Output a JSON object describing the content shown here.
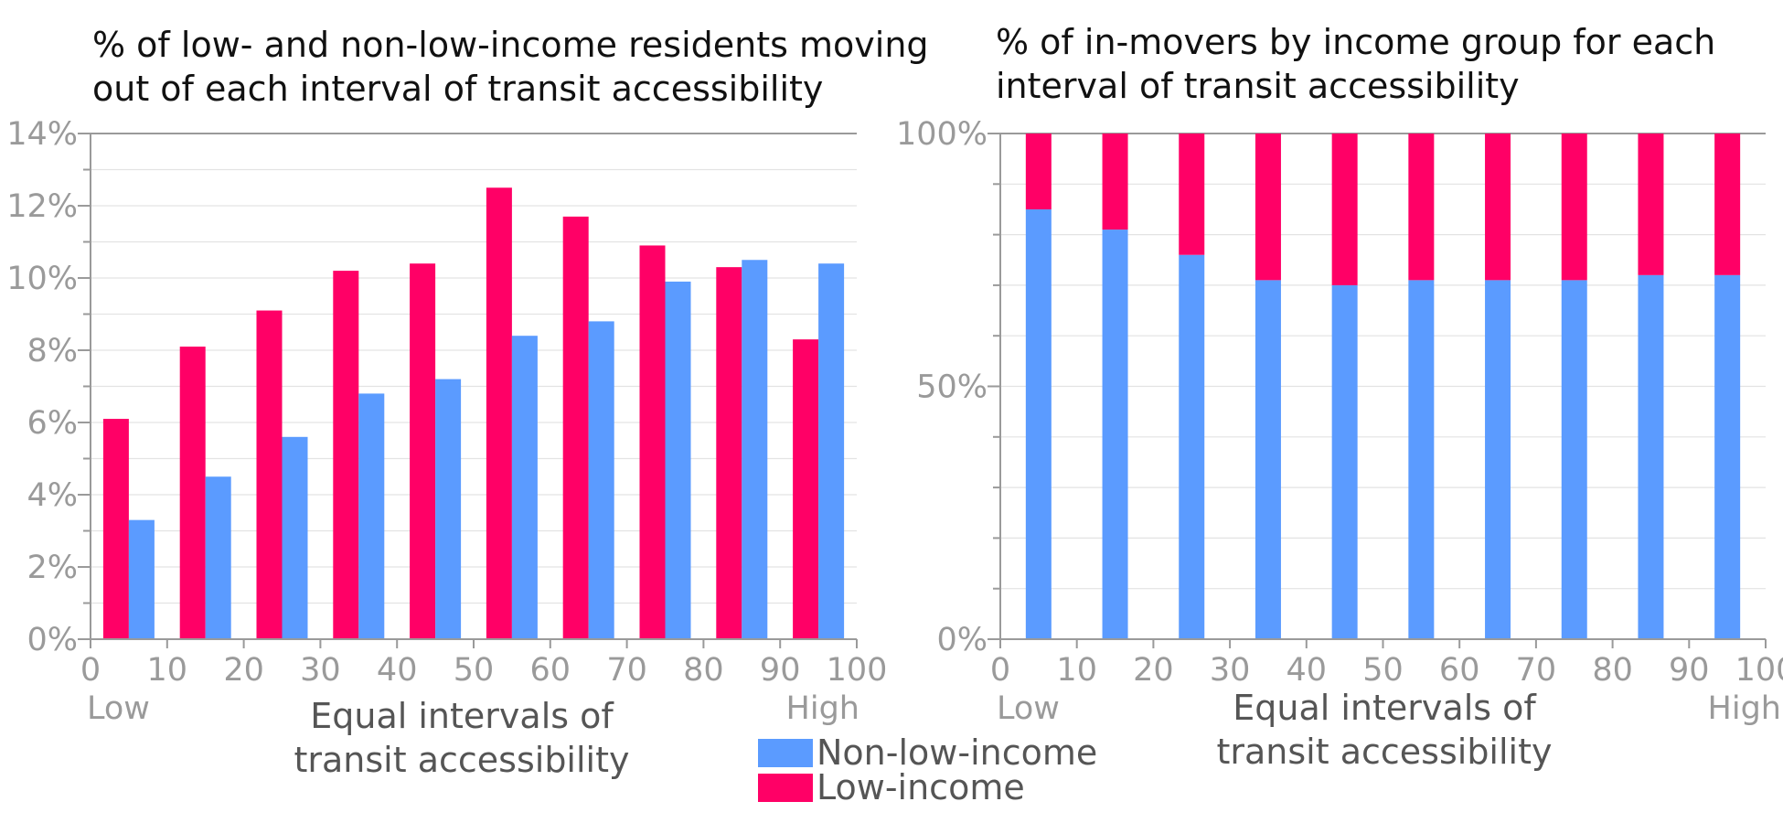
{
  "colors": {
    "non_low_income": "#5b9bff",
    "low_income": "#ff0066",
    "grid": "#e3e3e3",
    "tick_text": "#9a9a9a",
    "axis_text": "#555555"
  },
  "legend": {
    "items": [
      "Non-low-income",
      "Low-income"
    ]
  },
  "chart_data": [
    {
      "type": "bar",
      "title_lines": [
        "% of low- and non-low-income residents moving",
        "out of each interval of transit accessibility"
      ],
      "xlabel_lines": [
        "Equal intervals of",
        "transit accessibility"
      ],
      "x_low_label": "Low",
      "x_high_label": "High",
      "xlim": [
        0,
        100
      ],
      "x_ticks": [
        0,
        10,
        20,
        30,
        40,
        50,
        60,
        70,
        80,
        90,
        100
      ],
      "ylim": [
        0,
        14
      ],
      "y_tick_values": [
        0,
        2,
        4,
        6,
        8,
        10,
        12,
        14
      ],
      "y_tick_labels": [
        "0%",
        "2%",
        "4%",
        "6%",
        "8%",
        "10%",
        "12%",
        "14%"
      ],
      "y_minor_step": 1,
      "x": [
        5,
        15,
        25,
        35,
        45,
        55,
        65,
        75,
        85,
        95
      ],
      "series": [
        {
          "name": "Low-income",
          "values": [
            6.1,
            8.1,
            9.1,
            10.2,
            10.4,
            12.5,
            11.7,
            10.9,
            10.3,
            8.3
          ]
        },
        {
          "name": "Non-low-income",
          "values": [
            3.3,
            4.5,
            5.6,
            6.8,
            7.2,
            8.4,
            8.8,
            9.9,
            10.5,
            10.4
          ]
        }
      ]
    },
    {
      "type": "bar",
      "stacked": true,
      "title_lines": [
        "% of in-movers by income group for each",
        "interval of transit accessibility"
      ],
      "xlabel_lines": [
        "Equal intervals of",
        "transit accessibility"
      ],
      "x_low_label": "Low",
      "x_high_label": "High",
      "xlim": [
        0,
        100
      ],
      "x_ticks": [
        0,
        10,
        20,
        30,
        40,
        50,
        60,
        70,
        80,
        90,
        100
      ],
      "ylim": [
        0,
        100
      ],
      "y_tick_values": [
        0,
        50,
        100
      ],
      "y_tick_labels": [
        "0%",
        "50%",
        "100%"
      ],
      "y_minor_step": 10,
      "x": [
        5,
        15,
        25,
        35,
        45,
        55,
        65,
        75,
        85,
        95
      ],
      "series": [
        {
          "name": "Non-low-income",
          "values": [
            85,
            81,
            76,
            71,
            70,
            71,
            71,
            71,
            72,
            72
          ]
        },
        {
          "name": "Low-income",
          "values": [
            15,
            19,
            24,
            29,
            30,
            29,
            29,
            29,
            28,
            28
          ]
        }
      ]
    }
  ]
}
